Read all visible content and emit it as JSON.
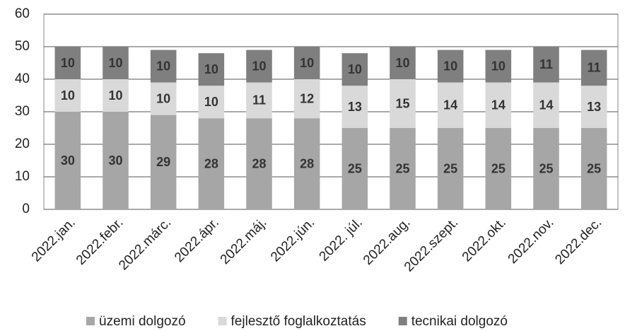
{
  "chart_data": {
    "type": "stacked_bar",
    "categories": [
      "2022.jan.",
      "2022.febr.",
      "2022.márc.",
      "2022.ápr.",
      "2022.máj.",
      "2022.jún.",
      "2022. júl.",
      "2022.aug.",
      "2022.szept.",
      "2022.okt.",
      "2022.nov.",
      "2022.dec."
    ],
    "series": [
      {
        "name": "üzemi dolgozó",
        "color": "#a6a6a6",
        "values": [
          30,
          30,
          29,
          28,
          28,
          28,
          25,
          25,
          25,
          25,
          25,
          25
        ]
      },
      {
        "name": "fejlesztő foglalkoztatás",
        "color": "#d9d9d9",
        "values": [
          10,
          10,
          10,
          10,
          11,
          12,
          13,
          15,
          14,
          14,
          14,
          13
        ]
      },
      {
        "name": "tecnikai dolgozó",
        "color": "#7f7f7f",
        "values": [
          10,
          10,
          10,
          10,
          10,
          10,
          10,
          10,
          10,
          10,
          11,
          11
        ]
      }
    ],
    "ylim": [
      0,
      60
    ],
    "yticks": [
      0,
      10,
      20,
      30,
      40,
      50,
      60
    ],
    "grid": true,
    "legend": "bottom"
  }
}
